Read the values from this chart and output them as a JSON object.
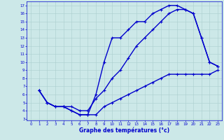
{
  "title": "Graphe des températures (°c)",
  "bg_color": "#cce8e8",
  "line_color": "#0000cc",
  "xlim": [
    -0.5,
    23.5
  ],
  "ylim": [
    2.8,
    17.5
  ],
  "xticks": [
    0,
    1,
    2,
    3,
    4,
    5,
    6,
    7,
    8,
    9,
    10,
    11,
    12,
    13,
    14,
    15,
    16,
    17,
    18,
    19,
    20,
    21,
    22,
    23
  ],
  "yticks": [
    3,
    4,
    5,
    6,
    7,
    8,
    9,
    10,
    11,
    12,
    13,
    14,
    15,
    16,
    17
  ],
  "line1_x": [
    1,
    2,
    3,
    4,
    5,
    6,
    7,
    8,
    9,
    10,
    11,
    12,
    13,
    14,
    15,
    16,
    17,
    18,
    19,
    20,
    21,
    22,
    23
  ],
  "line1_y": [
    6.5,
    5,
    4.5,
    4.5,
    4.0,
    3.5,
    3.5,
    6.0,
    10,
    13,
    13,
    14,
    15,
    15,
    16,
    16.5,
    17,
    17,
    16.5,
    16,
    13,
    10,
    9.5
  ],
  "line2_x": [
    1,
    2,
    3,
    4,
    5,
    6,
    7,
    8,
    9,
    10,
    11,
    12,
    13,
    14,
    15,
    16,
    17,
    18,
    19,
    20,
    21,
    22,
    23
  ],
  "line2_y": [
    6.5,
    5,
    4.5,
    4.5,
    4.5,
    4.0,
    4.0,
    5.5,
    6.5,
    8,
    9,
    10.5,
    12,
    13,
    14,
    15,
    16,
    16.5,
    16.5,
    16,
    13,
    10,
    9.5
  ],
  "line3_x": [
    1,
    2,
    3,
    4,
    5,
    6,
    7,
    8,
    9,
    10,
    11,
    12,
    13,
    14,
    15,
    16,
    17,
    18,
    19,
    20,
    21,
    22,
    23
  ],
  "line3_y": [
    6.5,
    5,
    4.5,
    4.5,
    4.0,
    3.5,
    3.5,
    3.5,
    4.5,
    5.0,
    5.5,
    6.0,
    6.5,
    7.0,
    7.5,
    8.0,
    8.5,
    8.5,
    8.5,
    8.5,
    8.5,
    8.5,
    9.0
  ]
}
